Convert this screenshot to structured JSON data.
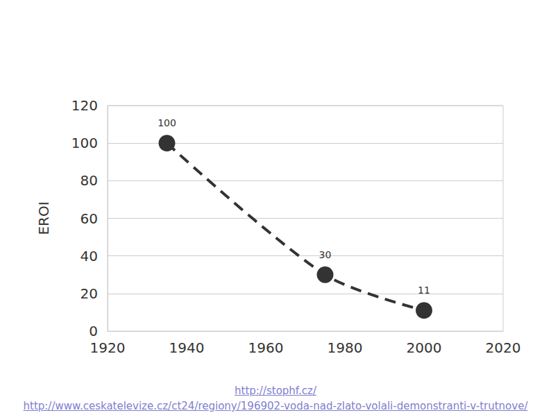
{
  "chart_data": {
    "type": "line",
    "y_label": "EROI",
    "x": [
      1935,
      1975,
      2000
    ],
    "values": [
      100,
      30,
      11
    ],
    "color": "#333333",
    "marker": "circle",
    "line_style": "dashed",
    "data_labels": true,
    "xlim": [
      1920,
      2020
    ],
    "xticks": [
      1920,
      1940,
      1960,
      1980,
      2000,
      2020
    ],
    "ylim": [
      0,
      120
    ],
    "yticks": [
      0,
      20,
      40,
      60,
      80,
      100,
      120
    ],
    "grid": true,
    "annotations": [
      "http://stophf.cz/",
      "http://www.ceskatelevize.cz/ct24/regiony/196902-voda-nad-zlato-volali-demonstranti-v-trutnove/"
    ]
  }
}
